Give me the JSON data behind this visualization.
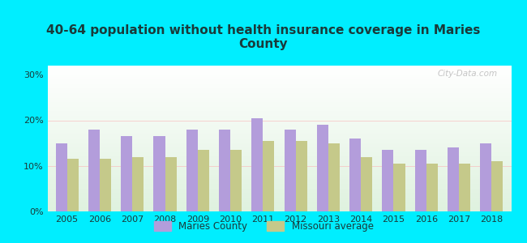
{
  "title": "40-64 population without health insurance coverage in Maries\nCounty",
  "years": [
    2005,
    2006,
    2007,
    2008,
    2009,
    2010,
    2011,
    2012,
    2013,
    2014,
    2015,
    2016,
    2017,
    2018
  ],
  "maries_county": [
    15.0,
    18.0,
    16.5,
    16.5,
    18.0,
    18.0,
    20.5,
    18.0,
    19.0,
    16.0,
    13.5,
    13.5,
    14.0,
    15.0
  ],
  "missouri_avg": [
    11.5,
    11.5,
    12.0,
    12.0,
    13.5,
    13.5,
    15.5,
    15.5,
    15.0,
    12.0,
    10.5,
    10.5,
    10.5,
    11.0
  ],
  "bar_color_maries": "#b39ddb",
  "bar_color_missouri": "#c5c98a",
  "background_outer": "#00eeff",
  "background_inner_top": "#ffffff",
  "background_inner_bottom": "#dff2df",
  "ylabel_ticks": [
    "0%",
    "10%",
    "20%",
    "30%"
  ],
  "ytick_vals": [
    0,
    10,
    20,
    30
  ],
  "ylim": [
    0,
    32
  ],
  "title_fontsize": 11,
  "tick_fontsize": 8,
  "title_color": "#1a3a3a",
  "tick_color": "#1a3a3a",
  "legend_label_maries": "Maries County",
  "legend_label_missouri": "Missouri average",
  "watermark": "City-Data.com",
  "bar_width": 0.35
}
